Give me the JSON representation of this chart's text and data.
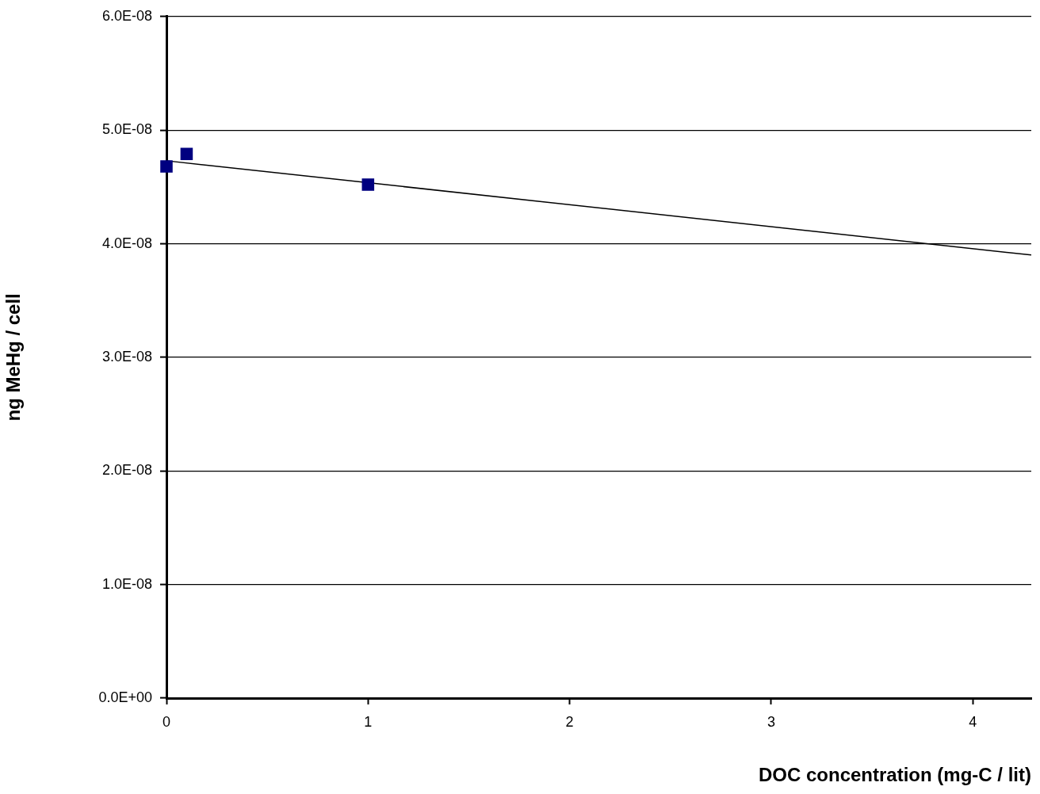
{
  "chart_data": {
    "type": "scatter",
    "xlabel": "DOC concentration (mg-C / lit)",
    "ylabel": "ng MeHg / cell",
    "x": [
      0,
      0.1,
      1
    ],
    "series": [
      {
        "color": "#000080",
        "marker": "square",
        "values": [
          4.68e-08,
          4.79e-08,
          4.52e-08
        ]
      },
      {
        "type": "line",
        "color": "#000000",
        "marker": "none",
        "x": [
          0,
          4.29
        ],
        "values": [
          4.73e-08,
          3.9e-08
        ]
      }
    ],
    "xlim": [
      0,
      4.29
    ],
    "xticks": [
      0,
      1,
      2,
      3,
      4
    ],
    "ylim": [
      0,
      6e-08
    ],
    "yticks": [
      {
        "value": 0,
        "label": "0.0E+00"
      },
      {
        "value": 1e-08,
        "label": "1.0E-08"
      },
      {
        "value": 2e-08,
        "label": "2.0E-08"
      },
      {
        "value": 3e-08,
        "label": "3.0E-08"
      },
      {
        "value": 4e-08,
        "label": "4.0E-08"
      },
      {
        "value": 5e-08,
        "label": "5.0E-08"
      },
      {
        "value": 6e-08,
        "label": "6.0E-08"
      }
    ],
    "grid": "y",
    "legend": false
  }
}
